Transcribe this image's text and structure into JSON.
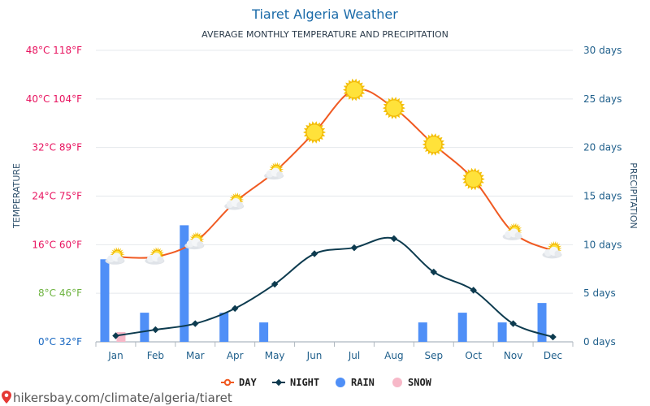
{
  "page": {
    "title": "Tiaret Algeria Weather",
    "subtitle": "AVERAGE MONTHLY TEMPERATURE AND PRECIPITATION",
    "footer_url": "hikersbay.com/climate/algeria/tiaret"
  },
  "chart_data": {
    "type": "line",
    "title": "Tiaret Algeria Weather",
    "subtitle": "AVERAGE MONTHLY TEMPERATURE AND PRECIPITATION",
    "categories": [
      "Jan",
      "Feb",
      "Mar",
      "Apr",
      "May",
      "Jun",
      "Jul",
      "Aug",
      "Sep",
      "Oct",
      "Nov",
      "Dec"
    ],
    "y_left_label": "TEMPERATURE",
    "y_right_label": "PRECIPITATION",
    "y_left_ticks": [
      {
        "value": 48,
        "label": "48°C 118°F",
        "color": "#e8135f"
      },
      {
        "value": 40,
        "label": "40°C 104°F",
        "color": "#e8135f"
      },
      {
        "value": 32,
        "label": "32°C 89°F",
        "color": "#e8135f"
      },
      {
        "value": 24,
        "label": "24°C 75°F",
        "color": "#e8135f"
      },
      {
        "value": 16,
        "label": "16°C 60°F",
        "color": "#e8135f"
      },
      {
        "value": 8,
        "label": "8°C 46°F",
        "color": "#6db33f"
      },
      {
        "value": 0,
        "label": "0°C 32°F",
        "color": "#1565c0"
      }
    ],
    "y_right_ticks": [
      {
        "value": 30,
        "label": "30 days"
      },
      {
        "value": 25,
        "label": "25 days"
      },
      {
        "value": 20,
        "label": "20 days"
      },
      {
        "value": 15,
        "label": "15 days"
      },
      {
        "value": 10,
        "label": "10 days"
      },
      {
        "value": 5,
        "label": "5 days"
      },
      {
        "value": 0,
        "label": "0 days"
      }
    ],
    "ylim_left": [
      0,
      48
    ],
    "ylim_right": [
      0,
      30
    ],
    "series": [
      {
        "name": "DAY",
        "type": "line",
        "axis": "left",
        "color": "#f05a22",
        "values": [
          14,
          14,
          16.5,
          23,
          28,
          34.5,
          41.5,
          38.5,
          32.5,
          26.8,
          18,
          15
        ]
      },
      {
        "name": "NIGHT",
        "type": "line",
        "axis": "left",
        "color": "#0d3b4f",
        "values": [
          1,
          2,
          3,
          5.5,
          9.5,
          14.5,
          15.5,
          17,
          11.5,
          8.5,
          3,
          0.8
        ]
      },
      {
        "name": "RAIN",
        "type": "bar",
        "axis": "right",
        "color": "#4f8ff7",
        "values": [
          8.5,
          3,
          12,
          3,
          2,
          0,
          0,
          0,
          2,
          3,
          2,
          4
        ]
      },
      {
        "name": "SNOW",
        "type": "bar",
        "axis": "right",
        "color": "#f7b8c8",
        "values": [
          1,
          0,
          0,
          0,
          0,
          0,
          0,
          0,
          0,
          0,
          0,
          0
        ]
      }
    ],
    "weather_icons": [
      "sun-cloud",
      "sun-cloud",
      "sun-cloud",
      "sun-cloud",
      "sun-cloud",
      "sun",
      "sun",
      "sun",
      "sun",
      "sun",
      "sun-cloud",
      "sun-cloud"
    ],
    "legend": [
      "DAY",
      "NIGHT",
      "RAIN",
      "SNOW"
    ],
    "grid": true
  }
}
